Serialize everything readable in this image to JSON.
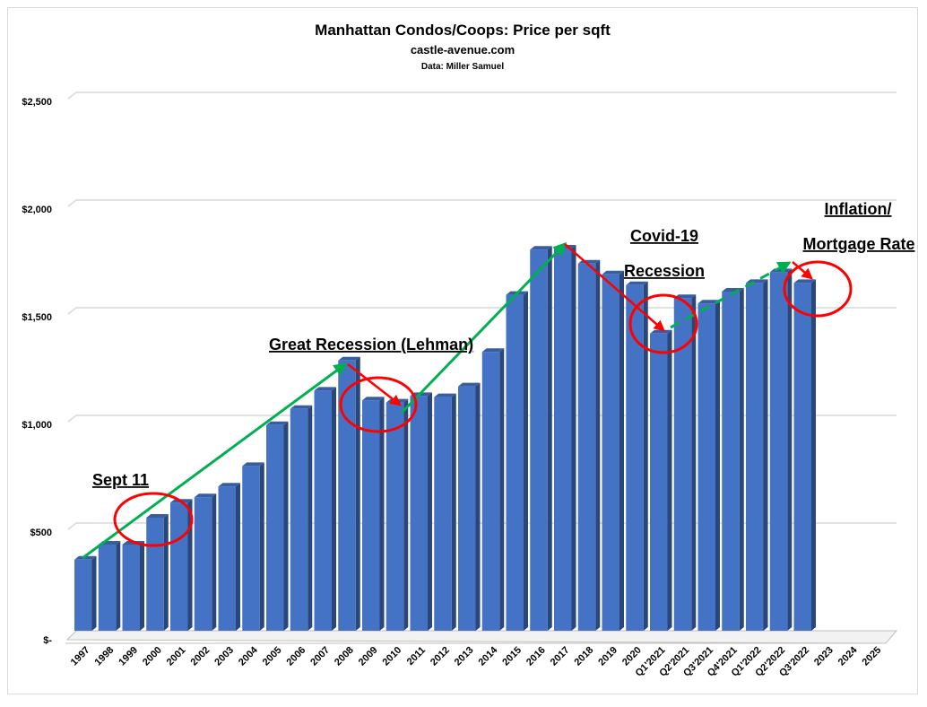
{
  "chart_data": {
    "type": "bar",
    "title": "Manhattan Condos/Coops: Price per sqft",
    "subtitle": "castle-avenue.com",
    "source": "Data: Miller Samuel",
    "xlabel": "",
    "ylabel": "",
    "ylim": [
      0,
      2500
    ],
    "y_ticks": [
      0,
      500,
      1000,
      1500,
      2000,
      2500
    ],
    "y_tick_labels": [
      "$-",
      "$500",
      "$1,000",
      "$1,500",
      "$2,000",
      "$2,500"
    ],
    "grid": true,
    "legend": "none",
    "categories": [
      "1997",
      "1998",
      "1999",
      "2000",
      "2001",
      "2002",
      "2003",
      "2004",
      "2005",
      "2006",
      "2007",
      "2008",
      "2009",
      "2010",
      "2011",
      "2012",
      "2013",
      "2014",
      "2015",
      "2016",
      "2017",
      "2018",
      "2019",
      "2020",
      "Q1'2021",
      "Q2'2021",
      "Q3'2021",
      "Q4'2021",
      "Q1'2022",
      "Q2'2022",
      "Q3'2022",
      "2023",
      "2024",
      "2025"
    ],
    "series": [
      {
        "name": "Price per sqft",
        "color": "#4472C4",
        "values": [
          330,
          400,
          400,
          525,
          595,
          620,
          670,
          765,
          955,
          1030,
          1115,
          1255,
          1070,
          1060,
          1090,
          1085,
          1135,
          1295,
          1560,
          1770,
          1775,
          1705,
          1655,
          1605,
          1380,
          1545,
          1520,
          1575,
          1615,
          1665,
          1615,
          null,
          null,
          null
        ]
      }
    ],
    "annotations": {
      "labels": [
        {
          "id": "sept11",
          "text": "Sept 11"
        },
        {
          "id": "great-recession",
          "text": "Great Recession (Lehman)"
        },
        {
          "id": "covid-1",
          "text": "Covid-19"
        },
        {
          "id": "covid-2",
          "text": "Recession"
        },
        {
          "id": "inflation-1",
          "text": "Inflation/"
        },
        {
          "id": "inflation-2",
          "text": "Mortgage Rate"
        }
      ],
      "up_color": "#00B050",
      "down_color": "#FF0000",
      "circle_color": "#FF0000"
    }
  }
}
